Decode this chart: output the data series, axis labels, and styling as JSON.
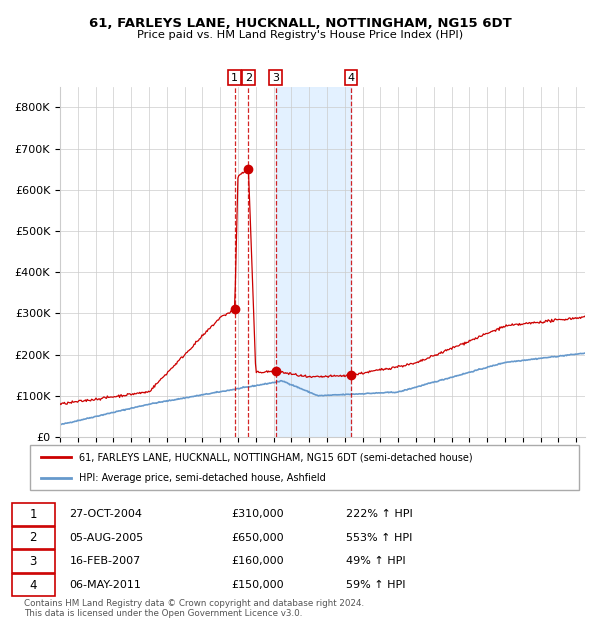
{
  "title": "61, FARLEYS LANE, HUCKNALL, NOTTINGHAM, NG15 6DT",
  "subtitle": "Price paid vs. HM Land Registry's House Price Index (HPI)",
  "transactions": [
    {
      "num": "1",
      "date_label": "27-OCT-2004",
      "price": "£310,000",
      "pct": "222% ↑ HPI",
      "x_year": 2004.82,
      "y": 310000
    },
    {
      "num": "2",
      "date_label": "05-AUG-2005",
      "price": "£650,000",
      "pct": "553% ↑ HPI",
      "x_year": 2005.59,
      "y": 650000
    },
    {
      "num": "3",
      "date_label": "16-FEB-2007",
      "price": "£160,000",
      "pct": "49% ↑ HPI",
      "x_year": 2007.12,
      "y": 160000
    },
    {
      "num": "4",
      "date_label": "06-MAY-2011",
      "price": "£150,000",
      "pct": "59% ↑ HPI",
      "x_year": 2011.35,
      "y": 150000
    }
  ],
  "legend_line1": "61, FARLEYS LANE, HUCKNALL, NOTTINGHAM, NG15 6DT (semi-detached house)",
  "legend_line2": "HPI: Average price, semi-detached house, Ashfield",
  "footer1": "Contains HM Land Registry data © Crown copyright and database right 2024.",
  "footer2": "This data is licensed under the Open Government Licence v3.0.",
  "red_color": "#cc0000",
  "blue_color": "#6699cc",
  "shaded_region": [
    2007.12,
    2011.35
  ],
  "ylim": [
    0,
    850000
  ],
  "xlim_start": 1995.0,
  "xlim_end": 2024.5,
  "grid_color": "#cccccc",
  "shade_color": "#ddeeff"
}
